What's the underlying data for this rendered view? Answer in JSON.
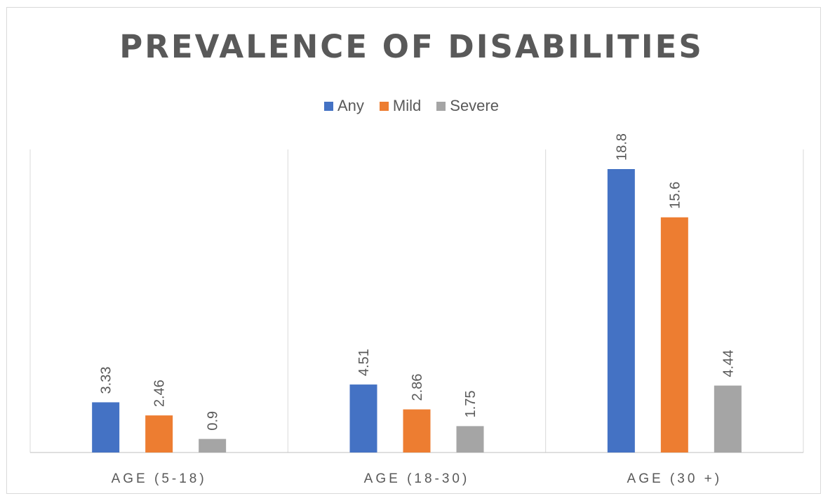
{
  "chart_data": {
    "type": "bar",
    "title": "PREVALENCE OF DISABILITIES",
    "categories": [
      "AGE (5-18)",
      "AGE (18-30)",
      "AGE (30 +)"
    ],
    "series": [
      {
        "name": "Any",
        "color": "#4472C4",
        "values": [
          3.33,
          4.51,
          18.8
        ]
      },
      {
        "name": "Mild",
        "color": "#ED7D31",
        "values": [
          2.46,
          2.86,
          15.6
        ]
      },
      {
        "name": "Severe",
        "color": "#A5A5A5",
        "values": [
          0.9,
          1.75,
          4.44
        ]
      }
    ],
    "xlabel": "",
    "ylabel": "",
    "ylim": [
      0,
      20
    ],
    "grid": false,
    "category_separators": true,
    "legend_position": "top"
  }
}
